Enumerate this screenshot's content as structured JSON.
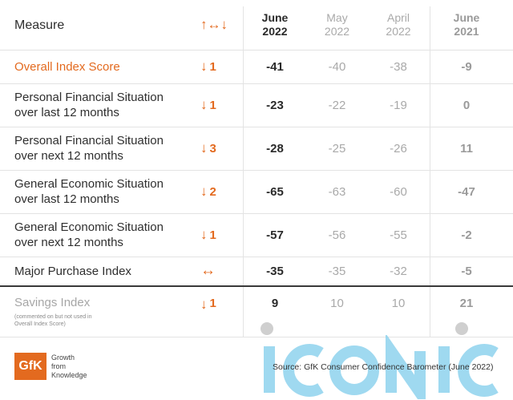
{
  "header": {
    "measure": "Measure",
    "change_icon": "up-arrow-horizontal-arrow-down-arrow",
    "change_glyph": "↑↔↓",
    "cols": [
      {
        "month": "June",
        "year": "2022"
      },
      {
        "month": "May",
        "year": "2022"
      },
      {
        "month": "April",
        "year": "2022"
      },
      {
        "month": "June",
        "year": "2021"
      }
    ]
  },
  "rows": [
    {
      "measure_line1": "Overall Index Score",
      "measure_line2": "",
      "dir": "↓",
      "change": "1",
      "jun22": "-41",
      "may22": "-40",
      "apr22": "-38",
      "jun21": "-9"
    },
    {
      "measure_line1": "Personal Financial Situation",
      "measure_line2": "over last 12 months",
      "dir": "↓",
      "change": "1",
      "jun22": "-23",
      "may22": "-22",
      "apr22": "-19",
      "jun21": "0"
    },
    {
      "measure_line1": "Personal Financial Situation",
      "measure_line2": "over next 12 months",
      "dir": "↓",
      "change": "3",
      "jun22": "-28",
      "may22": "-25",
      "apr22": "-26",
      "jun21": "11"
    },
    {
      "measure_line1": "General Economic Situation",
      "measure_line2": "over last 12 months",
      "dir": "↓",
      "change": "2",
      "jun22": "-65",
      "may22": "-63",
      "apr22": "-60",
      "jun21": "-47"
    },
    {
      "measure_line1": "General Economic Situation",
      "measure_line2": "over next 12 months",
      "dir": "↓",
      "change": "1",
      "jun22": "-57",
      "may22": "-56",
      "apr22": "-55",
      "jun21": "-2"
    },
    {
      "measure_line1": "Major Purchase Index",
      "measure_line2": "",
      "dir": "↔",
      "change": "",
      "jun22": "-35",
      "may22": "-35",
      "apr22": "-32",
      "jun21": "-5"
    },
    {
      "measure_line1": "Savings Index",
      "measure_line2": "(commented on but not used in Overall Index Score)",
      "dir": "↓",
      "change": "1",
      "jun22": "9",
      "may22": "10",
      "apr22": "10",
      "jun21": "21"
    }
  ],
  "footer": {
    "logo": "GfK",
    "tagline_1": "Growth",
    "tagline_2": "from",
    "tagline_3": "Knowledge",
    "source": "Source: GfK Consumer Confidence Barometer (June 2022)",
    "watermark": "iconic"
  },
  "colors": {
    "accent": "#e36a1f",
    "watermark": "#8fd3ee"
  }
}
